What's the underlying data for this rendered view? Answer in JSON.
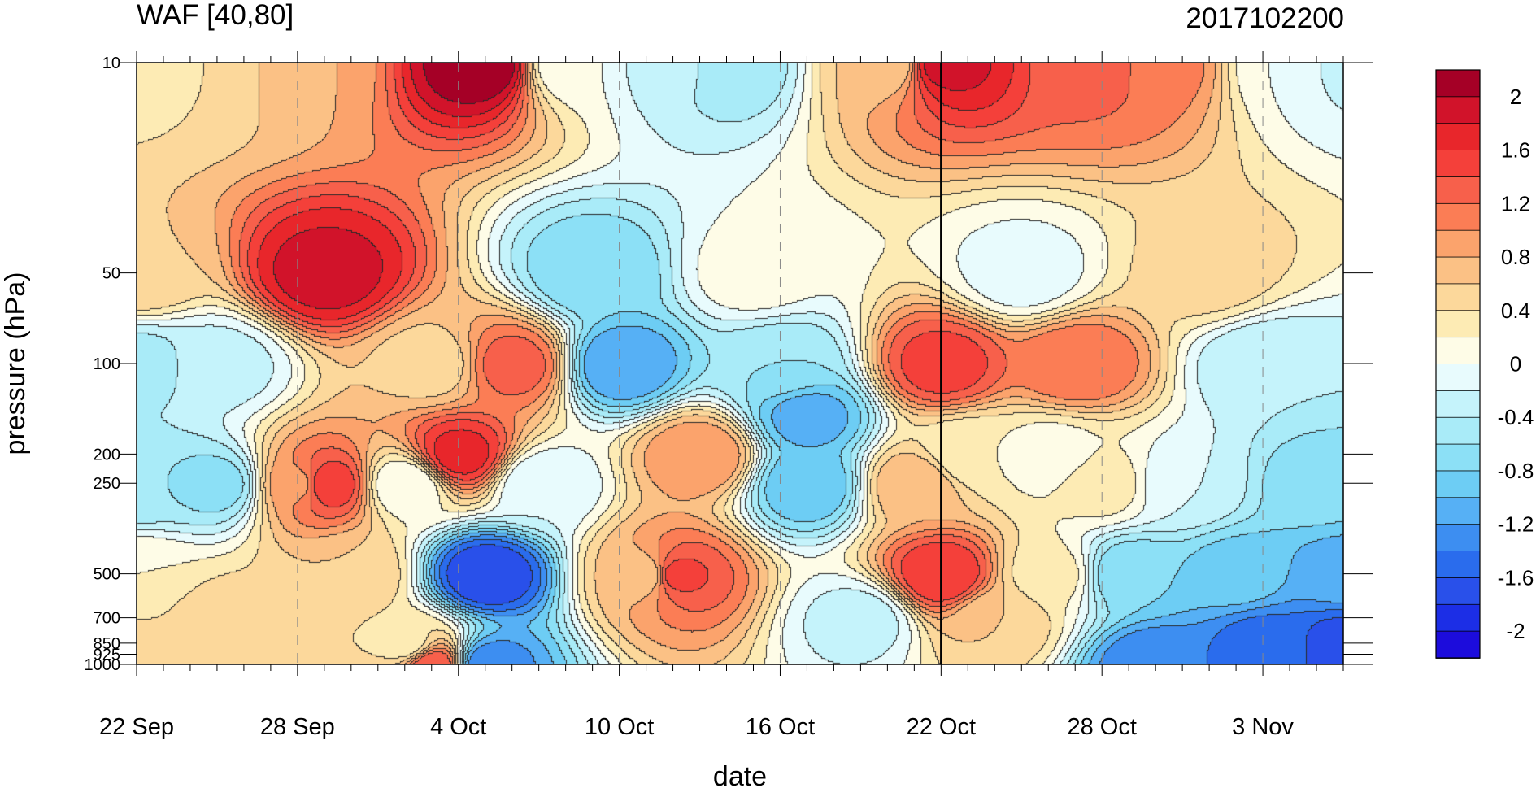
{
  "chart_data": {
    "type": "heatmap",
    "title_left": "WAF [40,80]",
    "title_right": "2017102200",
    "xlabel": "date",
    "ylabel": "pressure (hPa)",
    "x_ticks": [
      "22 Sep",
      "28 Sep",
      "4 Oct",
      "10 Oct",
      "16 Oct",
      "22 Oct",
      "28 Oct",
      "3 Nov"
    ],
    "x_tick_days": [
      0,
      6,
      12,
      18,
      24,
      30,
      36,
      42
    ],
    "x_range_days": [
      0,
      45
    ],
    "y_scale": "log",
    "y_reversed": true,
    "y_ticks": [
      "10",
      "50",
      "100",
      "200",
      "250",
      "500",
      "700",
      "850",
      "925",
      "1000"
    ],
    "y_tick_values": [
      10,
      50,
      100,
      200,
      250,
      500,
      700,
      850,
      925,
      1000
    ],
    "y_range": [
      10,
      1000
    ],
    "reference_line_day": 30,
    "colorbar": {
      "labels": [
        "2",
        "1.6",
        "1.2",
        "0.8",
        "0.4",
        "0",
        "-0.4",
        "-0.8",
        "-1.2",
        "-1.6",
        "-2"
      ],
      "label_values": [
        2,
        1.6,
        1.2,
        0.8,
        0.4,
        0,
        -0.4,
        -0.8,
        -1.2,
        -1.6,
        -2
      ],
      "levels": [
        -2.2,
        -2.0,
        -1.8,
        -1.6,
        -1.4,
        -1.2,
        -1.0,
        -0.8,
        -0.6,
        -0.4,
        -0.2,
        0,
        0.2,
        0.4,
        0.6,
        0.8,
        1.0,
        1.2,
        1.4,
        1.6,
        1.8,
        2.0,
        2.2
      ],
      "colors": [
        "#a50026",
        "#d1132a",
        "#e8262b",
        "#f4403a",
        "#f7604b",
        "#fb7d55",
        "#fba36c",
        "#fbc185",
        "#fcd89b",
        "#fdebb4",
        "#fefce7",
        "#e8fbfd",
        "#c5f3fb",
        "#a9ebf8",
        "#8ce0f6",
        "#6dcdf4",
        "#56b0f5",
        "#3d8ef1",
        "#2a6ced",
        "#2950ea",
        "#1c2ee6",
        "#1c0cdc"
      ]
    },
    "data_points": [
      {
        "day": 0,
        "p": 10,
        "v": 0.3
      },
      {
        "day": 0,
        "p": 50,
        "v": 0.6
      },
      {
        "day": 0,
        "p": 100,
        "v": -0.5
      },
      {
        "day": 0,
        "p": 250,
        "v": -0.6
      },
      {
        "day": 0,
        "p": 500,
        "v": 0.2
      },
      {
        "day": 0,
        "p": 1000,
        "v": 0.6
      },
      {
        "day": 3,
        "p": 10,
        "v": 0.4
      },
      {
        "day": 3,
        "p": 100,
        "v": -0.3
      },
      {
        "day": 3,
        "p": 250,
        "v": -0.7
      },
      {
        "day": 3,
        "p": 700,
        "v": 0.5
      },
      {
        "day": 6,
        "p": 10,
        "v": 0.8
      },
      {
        "day": 6,
        "p": 250,
        "v": 0.9
      },
      {
        "day": 7,
        "p": 50,
        "v": 1.9
      },
      {
        "day": 7,
        "p": 250,
        "v": 1.6
      },
      {
        "day": 8,
        "p": 500,
        "v": 0.6
      },
      {
        "day": 10,
        "p": 250,
        "v": 0.0
      },
      {
        "day": 10,
        "p": 850,
        "v": 0.3
      },
      {
        "day": 11,
        "p": 100,
        "v": 0.5
      },
      {
        "day": 11,
        "p": 1000,
        "v": 1.4
      },
      {
        "day": 12,
        "p": 200,
        "v": 1.7
      },
      {
        "day": 13,
        "p": 10,
        "v": 2.2
      },
      {
        "day": 13,
        "p": 500,
        "v": -1.8
      },
      {
        "day": 13,
        "p": 1000,
        "v": -1.4
      },
      {
        "day": 14,
        "p": 100,
        "v": 1.3
      },
      {
        "day": 15,
        "p": 250,
        "v": -0.2
      },
      {
        "day": 16,
        "p": 10,
        "v": 0.0
      },
      {
        "day": 17,
        "p": 50,
        "v": -0.8
      },
      {
        "day": 18,
        "p": 100,
        "v": -1.2
      },
      {
        "day": 19,
        "p": 500,
        "v": 0.6
      },
      {
        "day": 20,
        "p": 10,
        "v": -0.3
      },
      {
        "day": 20,
        "p": 500,
        "v": 1.5
      },
      {
        "day": 21,
        "p": 200,
        "v": 1.0
      },
      {
        "day": 22,
        "p": 10,
        "v": -0.6
      },
      {
        "day": 23,
        "p": 50,
        "v": 0.1
      },
      {
        "day": 24,
        "p": 100,
        "v": -0.6
      },
      {
        "day": 25,
        "p": 150,
        "v": -1.1
      },
      {
        "day": 25,
        "p": 250,
        "v": -1.0
      },
      {
        "day": 27,
        "p": 700,
        "v": -0.3
      },
      {
        "day": 28,
        "p": 10,
        "v": 0.6
      },
      {
        "day": 29,
        "p": 250,
        "v": 0.8
      },
      {
        "day": 30,
        "p": 10,
        "v": 1.9
      },
      {
        "day": 30,
        "p": 100,
        "v": 1.5
      },
      {
        "day": 30,
        "p": 500,
        "v": 1.6
      },
      {
        "day": 31,
        "p": 200,
        "v": 0.2
      },
      {
        "day": 32,
        "p": 700,
        "v": 0.6
      },
      {
        "day": 33,
        "p": 50,
        "v": -0.1
      },
      {
        "day": 34,
        "p": 200,
        "v": 0.1
      },
      {
        "day": 34,
        "p": 500,
        "v": 0.3
      },
      {
        "day": 35,
        "p": 100,
        "v": 1.2
      },
      {
        "day": 36,
        "p": 10,
        "v": 1.3
      },
      {
        "day": 36,
        "p": 250,
        "v": 0.3
      },
      {
        "day": 37,
        "p": 500,
        "v": -0.8
      },
      {
        "day": 38,
        "p": 10,
        "v": 1.1
      },
      {
        "day": 38,
        "p": 1000,
        "v": -1.4
      },
      {
        "day": 39,
        "p": 250,
        "v": -0.2
      },
      {
        "day": 40,
        "p": 50,
        "v": 0.5
      },
      {
        "day": 41,
        "p": 500,
        "v": -0.9
      },
      {
        "day": 42,
        "p": 100,
        "v": -0.4
      },
      {
        "day": 42,
        "p": 850,
        "v": -1.5
      },
      {
        "day": 43,
        "p": 10,
        "v": 0.0
      },
      {
        "day": 44,
        "p": 250,
        "v": -0.7
      },
      {
        "day": 45,
        "p": 10,
        "v": -0.3
      },
      {
        "day": 45,
        "p": 500,
        "v": -1.1
      },
      {
        "day": 45,
        "p": 850,
        "v": -1.7
      }
    ]
  }
}
